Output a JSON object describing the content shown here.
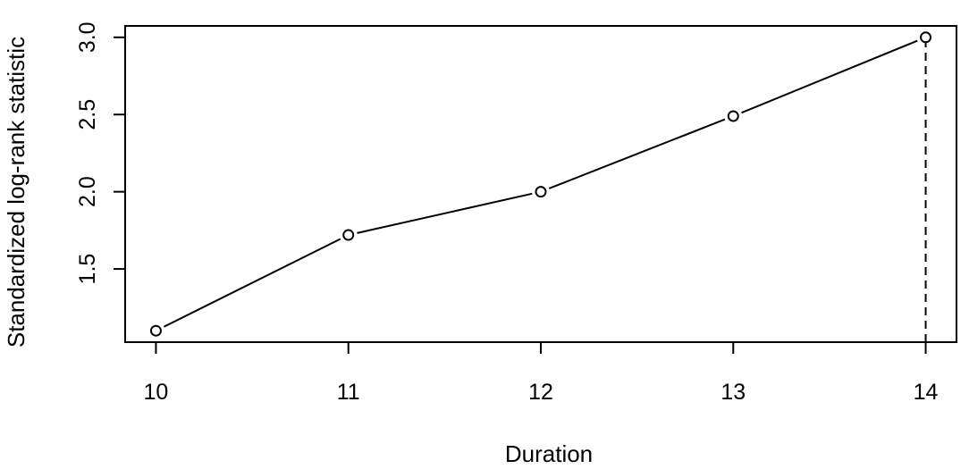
{
  "chart_data": {
    "type": "line",
    "title": "",
    "xlabel": "Duration",
    "ylabel": "Standardized log-rank statistic",
    "x": [
      10,
      11,
      12,
      13,
      14
    ],
    "series": [
      {
        "values": [
          1.1,
          1.72,
          2.0,
          2.49,
          3.0
        ],
        "line_style": "solid",
        "marker": "open-circle",
        "color": "#000000"
      }
    ],
    "xticks": [
      10,
      11,
      12,
      13,
      14
    ],
    "xtick_labels": [
      "10",
      "11",
      "12",
      "13",
      "14"
    ],
    "yticks": [
      1.5,
      2.0,
      2.5,
      3.0
    ],
    "ytick_labels": [
      "1.5",
      "2.0",
      "2.5",
      "3.0"
    ],
    "xlim": [
      9.84,
      14.16
    ],
    "ylim": [
      1.026,
      3.074
    ],
    "reference_line": {
      "orientation": "vertical",
      "x": 14,
      "from_y": 1.026,
      "to_y": 3.0,
      "line_style": "dashed",
      "color": "#000000"
    },
    "grid": false,
    "legend": "none"
  }
}
